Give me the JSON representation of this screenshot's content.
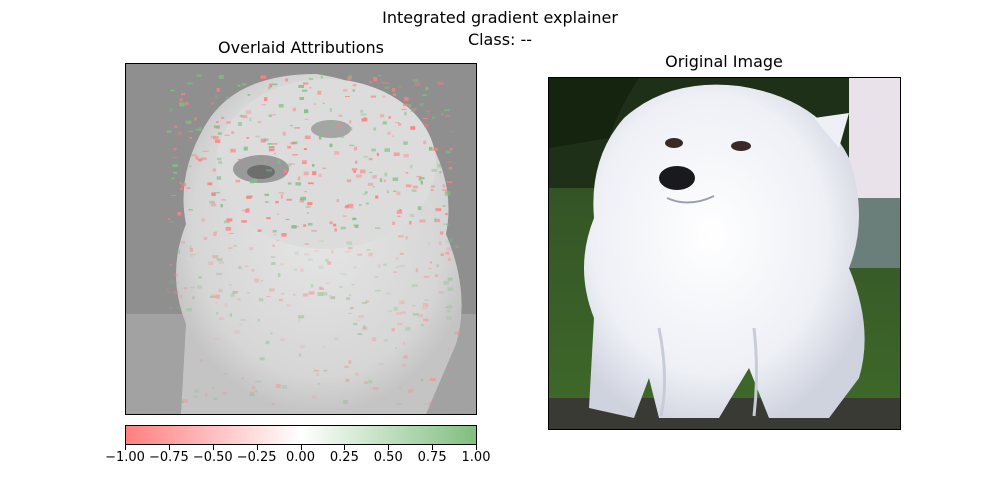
{
  "figure": {
    "title_line1": "Integrated gradient explainer",
    "title_line2": "Class: --"
  },
  "left_panel": {
    "title": "Overlaid Attributions"
  },
  "right_panel": {
    "title": "Original Image"
  },
  "colorbar": {
    "ticks": [
      "−1.00",
      "−0.75",
      "−0.50",
      "−0.25",
      "0.00",
      "0.25",
      "0.50",
      "0.75",
      "1.00"
    ],
    "min_color": "#ff7f7f",
    "mid_color": "#ffffff",
    "max_color": "#7fbf7f"
  }
}
